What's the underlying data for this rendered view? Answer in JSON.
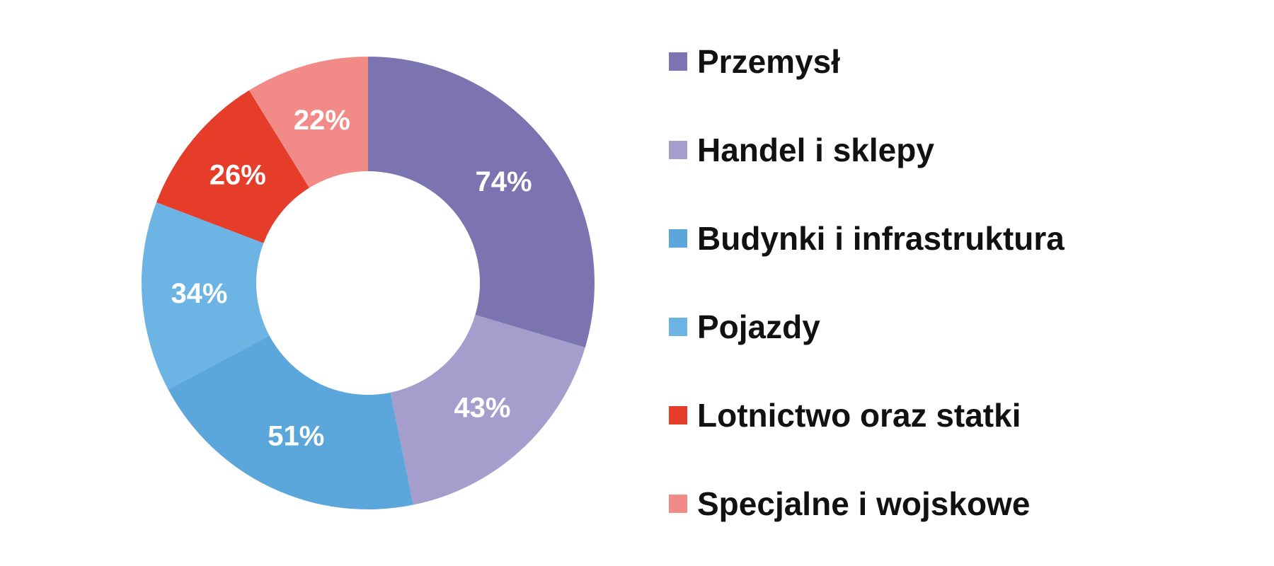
{
  "chart_data": {
    "type": "pie",
    "donut": true,
    "categories": [
      "Przemysł",
      "Handel i sklepy",
      "Budynki i infrastruktura",
      "Pojazdy",
      "Lotnictwo oraz statki",
      "Specjalne i wojskowe"
    ],
    "values": [
      74,
      43,
      51,
      34,
      26,
      22
    ],
    "value_labels": [
      "74%",
      "43%",
      "51%",
      "34%",
      "26%",
      "22%"
    ],
    "colors": [
      "#7b74b0",
      "#a59ecc",
      "#5ba6da",
      "#6cb4e3",
      "#e63c2a",
      "#f28a88"
    ],
    "legend_position": "right"
  }
}
